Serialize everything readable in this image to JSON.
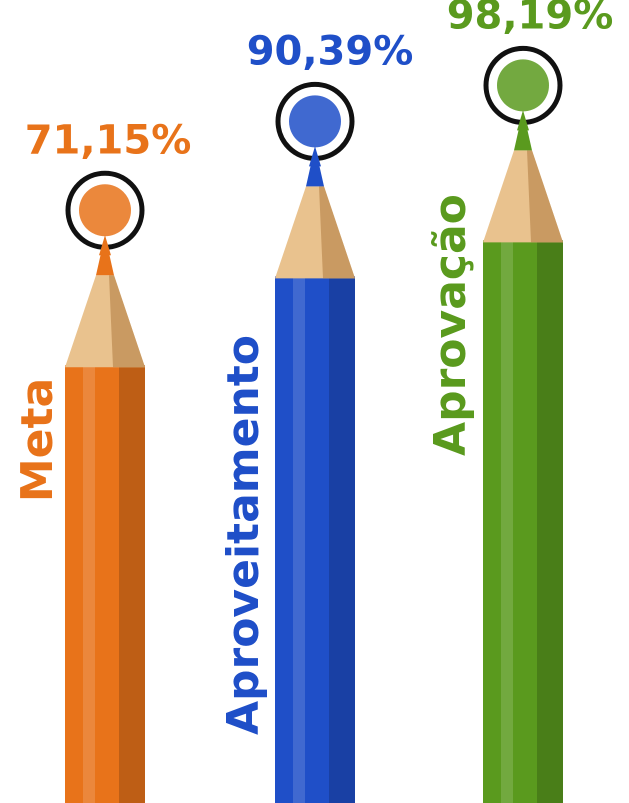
{
  "chart_data": {
    "type": "pencil-bar",
    "categories": [
      "Meta",
      "Aproveitamento",
      "Aprovação"
    ],
    "values": [
      71.15,
      90.39,
      98.19
    ],
    "value_labels": [
      "71,15%",
      "90,39%",
      "98,19%"
    ],
    "colors": [
      "#e8731a",
      "#1f4fc8",
      "#5a9a1e"
    ]
  }
}
